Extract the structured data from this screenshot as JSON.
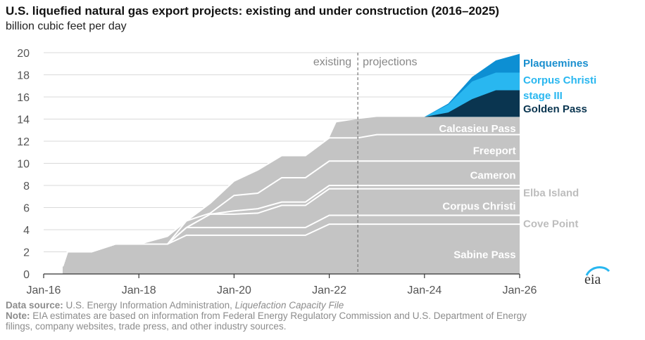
{
  "title": "U.S. liquefied natural gas export projects: existing and under construction (2016–2025)",
  "subtitle": "billion cubic feet per day",
  "logo_text": "eia",
  "footer": {
    "source_label": "Data source:",
    "source_text": " U.S. Energy Information Administration, ",
    "source_italic": "Liquefaction Capacity File",
    "note_label": "Note:",
    "note_text": " EIA estimates are based on information from Federal Energy Regulatory Commission and U.S. Department of Energy",
    "note_text_2": "filings, company websites, trade press, and other industry sources."
  },
  "chart_data": {
    "type": "area",
    "stacked": true,
    "title": "U.S. liquefied natural gas export projects: existing and under construction (2016–2025)",
    "ylabel": "billion cubic feet per day",
    "xlim": [
      2016,
      2026
    ],
    "ylim": [
      0,
      20
    ],
    "y_ticks": [
      0,
      2,
      4,
      6,
      8,
      10,
      12,
      14,
      16,
      18,
      20
    ],
    "x_ticks": [
      {
        "value": 2016,
        "label": "Jan-16"
      },
      {
        "value": 2018,
        "label": "Jan-18"
      },
      {
        "value": 2020,
        "label": "Jan-20"
      },
      {
        "value": 2022,
        "label": "Jan-22"
      },
      {
        "value": 2024,
        "label": "Jan-24"
      },
      {
        "value": 2026,
        "label": "Jan-26"
      }
    ],
    "divider": {
      "x": 2022.6,
      "left_label": "existing",
      "right_label": "projections"
    },
    "colors": {
      "existing": "#c4c4c4",
      "golden_pass": "#0a3550",
      "corpus_stage3": "#29b7f0",
      "plaquemines": "#0d8fd3",
      "separator": "#ffffff",
      "axis": "#333333",
      "tick_text": "#555555",
      "gray_label": "#bdbdbd",
      "dark_label": "#0a3550",
      "blue_label": "#1a8fcf"
    },
    "series": [
      {
        "name": "Sabine Pass",
        "points": [
          [
            2016.4,
            0.7
          ],
          [
            2016.5,
            2.0
          ],
          [
            2017.0,
            2.0
          ],
          [
            2017.5,
            2.7
          ],
          [
            2018.0,
            2.7
          ],
          [
            2018.6,
            2.7
          ],
          [
            2019.0,
            3.5
          ],
          [
            2020.5,
            3.5
          ],
          [
            2021.0,
            3.5
          ],
          [
            2021.5,
            3.5
          ],
          [
            2022.0,
            4.5
          ],
          [
            2026.0,
            4.5
          ]
        ]
      },
      {
        "name": "Cove Point",
        "points": [
          [
            2016.4,
            0.7
          ],
          [
            2016.5,
            2.0
          ],
          [
            2017.0,
            2.0
          ],
          [
            2017.5,
            2.7
          ],
          [
            2018.0,
            2.7
          ],
          [
            2018.6,
            2.7
          ],
          [
            2019.0,
            4.2
          ],
          [
            2020.5,
            4.2
          ],
          [
            2021.0,
            4.2
          ],
          [
            2021.5,
            4.2
          ],
          [
            2022.0,
            5.3
          ],
          [
            2026.0,
            5.3
          ]
        ]
      },
      {
        "name": "Corpus Christi",
        "points": [
          [
            2016.4,
            0.7
          ],
          [
            2016.5,
            2.0
          ],
          [
            2017.0,
            2.0
          ],
          [
            2017.5,
            2.7
          ],
          [
            2018.0,
            2.7
          ],
          [
            2018.6,
            2.7
          ],
          [
            2019.0,
            4.2
          ],
          [
            2019.5,
            5.4
          ],
          [
            2020.0,
            5.4
          ],
          [
            2020.5,
            5.5
          ],
          [
            2021.0,
            6.2
          ],
          [
            2021.5,
            6.2
          ],
          [
            2022.0,
            7.7
          ],
          [
            2026.0,
            7.7
          ]
        ]
      },
      {
        "name": "Elba Island",
        "points": [
          [
            2016.4,
            0.7
          ],
          [
            2016.5,
            2.0
          ],
          [
            2017.0,
            2.0
          ],
          [
            2017.5,
            2.7
          ],
          [
            2018.0,
            2.7
          ],
          [
            2018.6,
            2.7
          ],
          [
            2019.0,
            4.2
          ],
          [
            2019.5,
            5.4
          ],
          [
            2020.0,
            5.7
          ],
          [
            2020.5,
            5.9
          ],
          [
            2021.0,
            6.5
          ],
          [
            2021.5,
            6.5
          ],
          [
            2022.0,
            8.0
          ],
          [
            2026.0,
            8.0
          ]
        ]
      },
      {
        "name": "Cameron",
        "points": [
          [
            2016.4,
            0.7
          ],
          [
            2016.5,
            2.0
          ],
          [
            2017.0,
            2.0
          ],
          [
            2017.5,
            2.7
          ],
          [
            2018.0,
            2.7
          ],
          [
            2018.6,
            2.7
          ],
          [
            2019.0,
            4.8
          ],
          [
            2019.5,
            5.5
          ],
          [
            2020.0,
            7.1
          ],
          [
            2020.5,
            7.3
          ],
          [
            2021.0,
            8.7
          ],
          [
            2021.5,
            8.7
          ],
          [
            2022.0,
            10.2
          ],
          [
            2026.0,
            10.2
          ]
        ]
      },
      {
        "name": "Freeport",
        "points": [
          [
            2016.4,
            0.7
          ],
          [
            2016.5,
            2.0
          ],
          [
            2017.0,
            2.0
          ],
          [
            2017.5,
            2.7
          ],
          [
            2018.0,
            2.7
          ],
          [
            2018.6,
            3.4
          ],
          [
            2019.0,
            4.8
          ],
          [
            2019.5,
            6.4
          ],
          [
            2020.0,
            8.4
          ],
          [
            2020.5,
            9.4
          ],
          [
            2021.0,
            10.7
          ],
          [
            2021.5,
            10.7
          ],
          [
            2022.0,
            12.3
          ],
          [
            2022.6,
            12.3
          ],
          [
            2023.0,
            12.6
          ],
          [
            2026.0,
            12.6
          ]
        ]
      },
      {
        "name": "Calcasieu Pass",
        "points": [
          [
            2016.4,
            0.7
          ],
          [
            2016.5,
            2.0
          ],
          [
            2017.0,
            2.0
          ],
          [
            2017.5,
            2.7
          ],
          [
            2018.0,
            2.7
          ],
          [
            2018.6,
            3.4
          ],
          [
            2019.0,
            4.8
          ],
          [
            2019.5,
            6.4
          ],
          [
            2020.0,
            8.4
          ],
          [
            2020.5,
            9.4
          ],
          [
            2021.0,
            10.7
          ],
          [
            2021.5,
            10.7
          ],
          [
            2022.0,
            12.3
          ],
          [
            2022.15,
            13.7
          ],
          [
            2022.6,
            14.0
          ],
          [
            2023.0,
            14.2
          ],
          [
            2026.0,
            14.2
          ]
        ]
      },
      {
        "name": "Golden Pass",
        "points": [
          [
            2024.0,
            14.2
          ],
          [
            2024.5,
            14.6
          ],
          [
            2025.0,
            15.8
          ],
          [
            2025.5,
            16.6
          ],
          [
            2026.0,
            16.6
          ]
        ]
      },
      {
        "name": "Corpus Christi stage III",
        "points": [
          [
            2024.0,
            14.2
          ],
          [
            2024.5,
            15.3
          ],
          [
            2025.0,
            17.4
          ],
          [
            2025.5,
            18.2
          ],
          [
            2026.0,
            18.2
          ]
        ]
      },
      {
        "name": "Plaquemines",
        "points": [
          [
            2024.0,
            14.2
          ],
          [
            2024.5,
            15.4
          ],
          [
            2025.0,
            17.8
          ],
          [
            2025.5,
            19.3
          ],
          [
            2026.0,
            19.9
          ]
        ]
      }
    ],
    "in_area_labels": [
      {
        "text": "Sabine Pass",
        "x": 2025.95,
        "y": 1.8
      },
      {
        "text": "Corpus Christi",
        "x": 2025.95,
        "y": 6.2
      },
      {
        "text": "Cameron",
        "x": 2025.95,
        "y": 9.0
      },
      {
        "text": "Freeport",
        "x": 2025.95,
        "y": 11.2
      },
      {
        "text": "Calcasieu Pass",
        "x": 2025.95,
        "y": 13.2
      }
    ],
    "outside_labels": [
      {
        "text": "Cove Point",
        "y": 4.6,
        "style": "gray"
      },
      {
        "text": "Elba Island",
        "y": 7.4,
        "style": "gray"
      },
      {
        "text": "Golden Pass",
        "y": 15.0,
        "style": "dark"
      },
      {
        "text": "Corpus Christi",
        "y": 17.6,
        "style": "light"
      },
      {
        "text": "stage III",
        "y": 16.2,
        "style": "light"
      },
      {
        "text": "Plaquemines",
        "y": 19.1,
        "style": "blue"
      }
    ]
  }
}
